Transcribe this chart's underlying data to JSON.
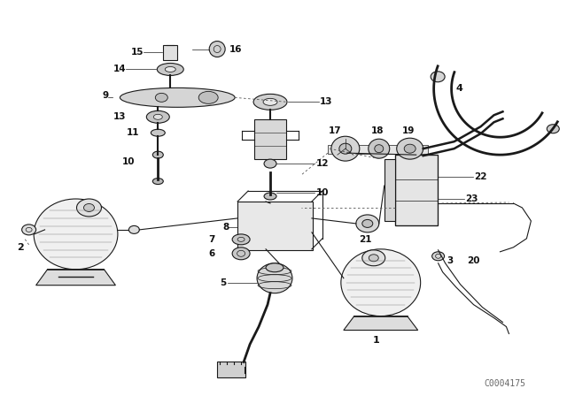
{
  "background_color": "#ffffff",
  "figure_width": 6.4,
  "figure_height": 4.48,
  "dpi": 100,
  "line_color": "#1a1a1a",
  "text_color": "#111111",
  "watermark": "C0004175",
  "watermark_fontsize": 7,
  "label_fontsize": 7.5,
  "label_fontweight": "bold"
}
